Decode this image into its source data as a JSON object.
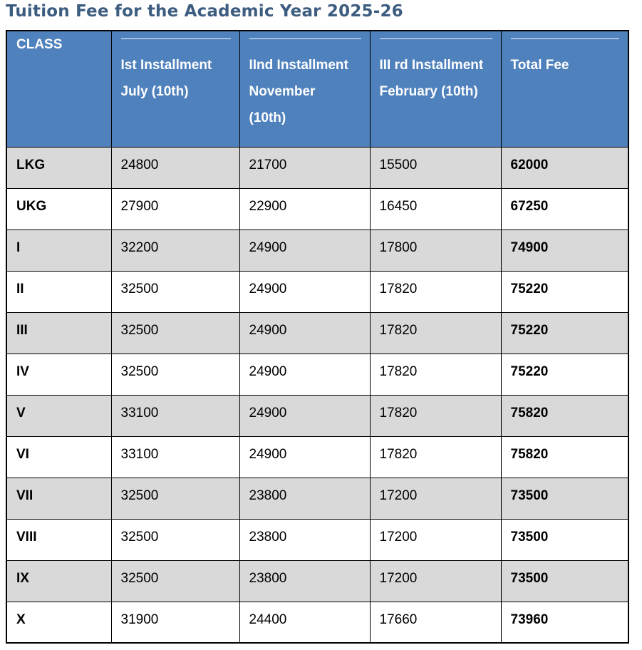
{
  "page_title": "Tuition Fee for the Academic Year 2025-26",
  "colors": {
    "title_text": "#3C5C80",
    "header_bg": "#4F81BD",
    "header_text": "#FFFFFF",
    "alt_row_bg": "#D9D9D9",
    "row_bg": "#FFFFFF",
    "border": "#000000"
  },
  "table": {
    "header": {
      "class": [
        "CLASS"
      ],
      "installment1": [
        "Ist Installment",
        "July (10th)"
      ],
      "installment2": [
        "IInd Installment",
        "November",
        "(10th)"
      ],
      "installment3": [
        "III rd Installment",
        "February (10th)"
      ],
      "total": [
        "Total Fee"
      ]
    },
    "rows": [
      {
        "class": "LKG",
        "installment1": "24800",
        "installment2": "21700",
        "installment3": "15500",
        "total": "62000"
      },
      {
        "class": "UKG",
        "installment1": "27900",
        "installment2": "22900",
        "installment3": "16450",
        "total": "67250"
      },
      {
        "class": "I",
        "installment1": "32200",
        "installment2": "24900",
        "installment3": "17800",
        "total": "74900"
      },
      {
        "class": "II",
        "installment1": "32500",
        "installment2": "24900",
        "installment3": "17820",
        "total": "75220"
      },
      {
        "class": "III",
        "installment1": "32500",
        "installment2": "24900",
        "installment3": "17820",
        "total": "75220"
      },
      {
        "class": "IV",
        "installment1": "32500",
        "installment2": "24900",
        "installment3": "17820",
        "total": "75220"
      },
      {
        "class": "V",
        "installment1": "33100",
        "installment2": "24900",
        "installment3": "17820",
        "total": "75820"
      },
      {
        "class": "VI",
        "installment1": "33100",
        "installment2": "24900",
        "installment3": "17820",
        "total": "75820"
      },
      {
        "class": "VII",
        "installment1": "32500",
        "installment2": "23800",
        "installment3": "17200",
        "total": "73500"
      },
      {
        "class": "VIII",
        "installment1": "32500",
        "installment2": "23800",
        "installment3": "17200",
        "total": "73500"
      },
      {
        "class": "IX",
        "installment1": "32500",
        "installment2": "23800",
        "installment3": "17200",
        "total": "73500"
      },
      {
        "class": "X",
        "installment1": "31900",
        "installment2": "24400",
        "installment3": "17660",
        "total": "73960"
      }
    ]
  }
}
